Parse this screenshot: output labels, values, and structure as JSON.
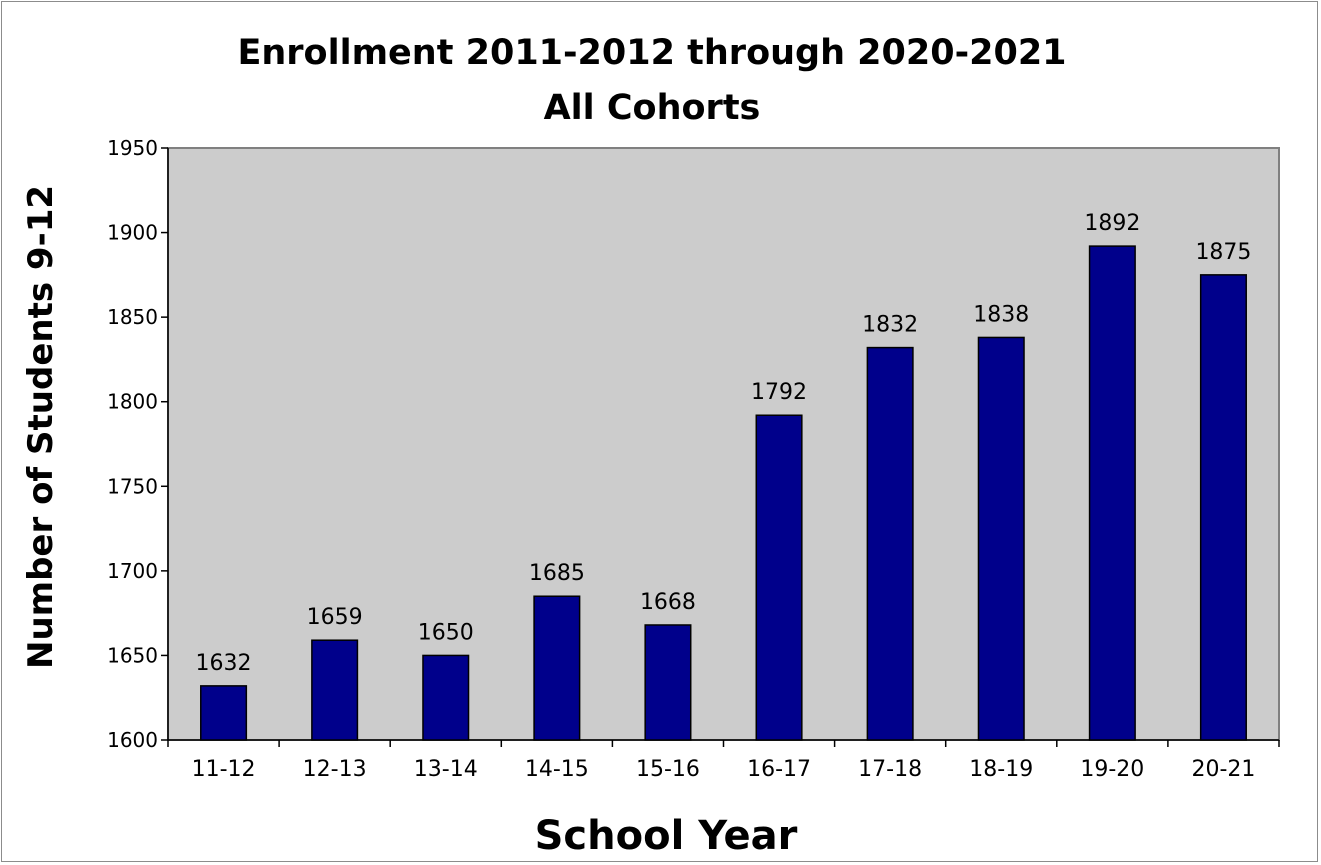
{
  "chart_data": {
    "type": "bar",
    "title": "Enrollment 2011-2012 through 2020-2021",
    "subtitle": "All Cohorts",
    "xlabel": "School Year",
    "ylabel": "Number of Students 9-12",
    "categories": [
      "11-12",
      "12-13",
      "13-14",
      "14-15",
      "15-16",
      "16-17",
      "17-18",
      "18-19",
      "19-20",
      "20-21"
    ],
    "values": [
      1632,
      1659,
      1650,
      1685,
      1668,
      1792,
      1832,
      1838,
      1892,
      1875
    ],
    "ylim": [
      1600,
      1950
    ],
    "yticks": [
      1600,
      1650,
      1700,
      1750,
      1800,
      1850,
      1900,
      1950
    ],
    "grid": false,
    "legend": "none",
    "colors": {
      "bar_fill": "#00008b",
      "bar_stroke": "#000000",
      "plot_background": "#cccccc",
      "plot_border": "#808080"
    }
  }
}
